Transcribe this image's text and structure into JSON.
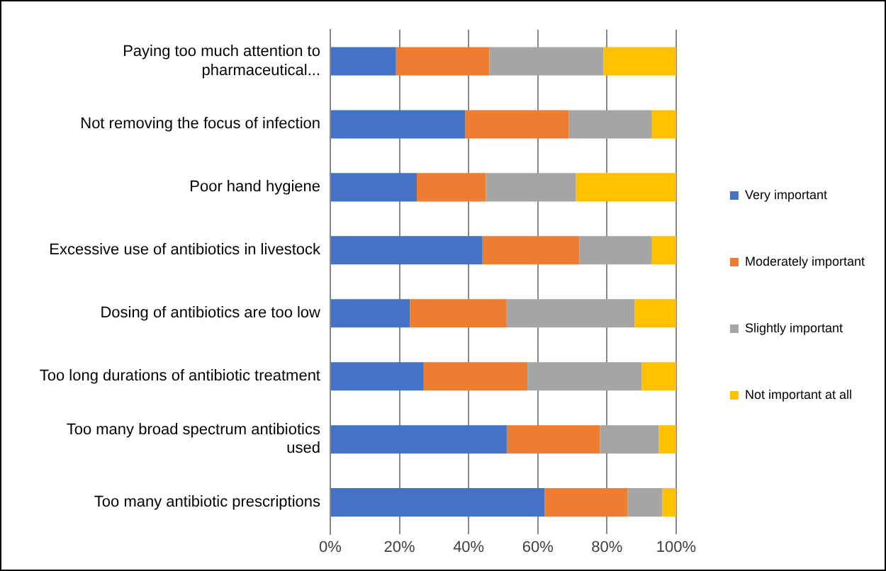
{
  "chart_data": {
    "type": "bar",
    "orientation": "horizontal",
    "stacked": true,
    "categories": [
      "Paying too much attention to pharmaceutical...",
      "Not removing the focus of infection",
      "Poor hand hygiene",
      "Excessive use of antibiotics in livestock",
      "Dosing of antibiotics are too low",
      "Too long durations of antibiotic treatment",
      "Too many broad spectrum antibiotics used",
      "Too many antibiotic prescriptions"
    ],
    "series": [
      {
        "name": "Very important",
        "color": "#4472c4",
        "values": [
          19,
          39,
          25,
          44,
          23,
          27,
          51,
          62
        ]
      },
      {
        "name": "Moderately important",
        "color": "#ed7d31",
        "values": [
          27,
          30,
          20,
          28,
          28,
          30,
          27,
          24
        ]
      },
      {
        "name": "Slightly important",
        "color": "#a5a5a5",
        "values": [
          33,
          24,
          26,
          21,
          37,
          33,
          17,
          10
        ]
      },
      {
        "name": "Not important at all",
        "color": "#ffc000",
        "values": [
          21,
          7,
          29,
          7,
          12,
          10,
          5,
          4
        ]
      }
    ],
    "xlim": [
      0,
      100
    ],
    "xticks": [
      {
        "value": 0,
        "label": "0%"
      },
      {
        "value": 20,
        "label": "20%"
      },
      {
        "value": 40,
        "label": "40%"
      },
      {
        "value": 60,
        "label": "60%"
      },
      {
        "value": 80,
        "label": "80%"
      },
      {
        "value": 100,
        "label": "100%"
      }
    ],
    "grid": "x",
    "legend": "right"
  }
}
